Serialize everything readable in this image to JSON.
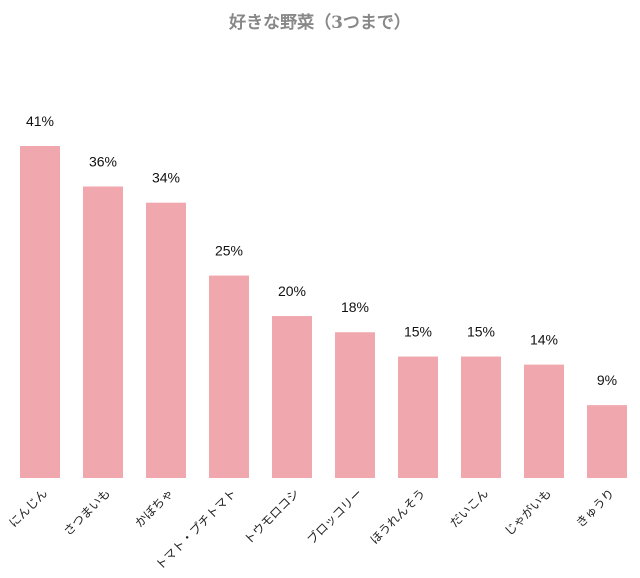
{
  "chart_data": {
    "type": "bar",
    "title": "好きな野菜（3つまで）",
    "categories": [
      "にんじん",
      "さつまいも",
      "かぼちゃ",
      "トマト・プチトマト",
      "トウモロコシ",
      "ブロッコリー",
      "ほうれんそう",
      "だいこん",
      "じゃがいも",
      "きゅうり"
    ],
    "values": [
      41,
      36,
      34,
      25,
      20,
      18,
      15,
      15,
      14,
      9
    ],
    "value_labels": [
      "41%",
      "36%",
      "34%",
      "25%",
      "20%",
      "18%",
      "15%",
      "15%",
      "14%",
      "9%"
    ],
    "unit": "%",
    "bar_color": "#f0a8ae",
    "ylim": [
      0,
      41
    ],
    "grid": false,
    "legend": "none"
  }
}
